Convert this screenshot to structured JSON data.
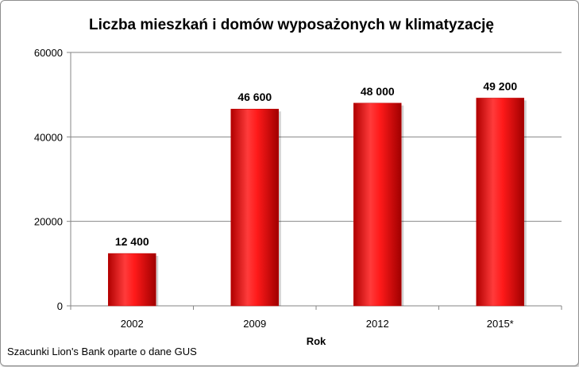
{
  "chart_data": {
    "type": "bar",
    "title": "Liczba mieszkań i domów wyposażonych w klimatyzację",
    "xlabel": "Rok",
    "ylabel": "",
    "categories": [
      "2002",
      "2009",
      "2012",
      "2015*"
    ],
    "values": [
      12400,
      46600,
      48000,
      49200
    ],
    "data_labels": [
      "12 400",
      "46 600",
      "48 000",
      "49 200"
    ],
    "y_ticks": [
      "0",
      "20000",
      "40000",
      "60000"
    ],
    "ylim": [
      0,
      60000
    ],
    "grid": true,
    "legend": "none",
    "bar_color": "#ff0000",
    "source_note": "Szacunki Lion's Bank oparte o dane GUS"
  }
}
